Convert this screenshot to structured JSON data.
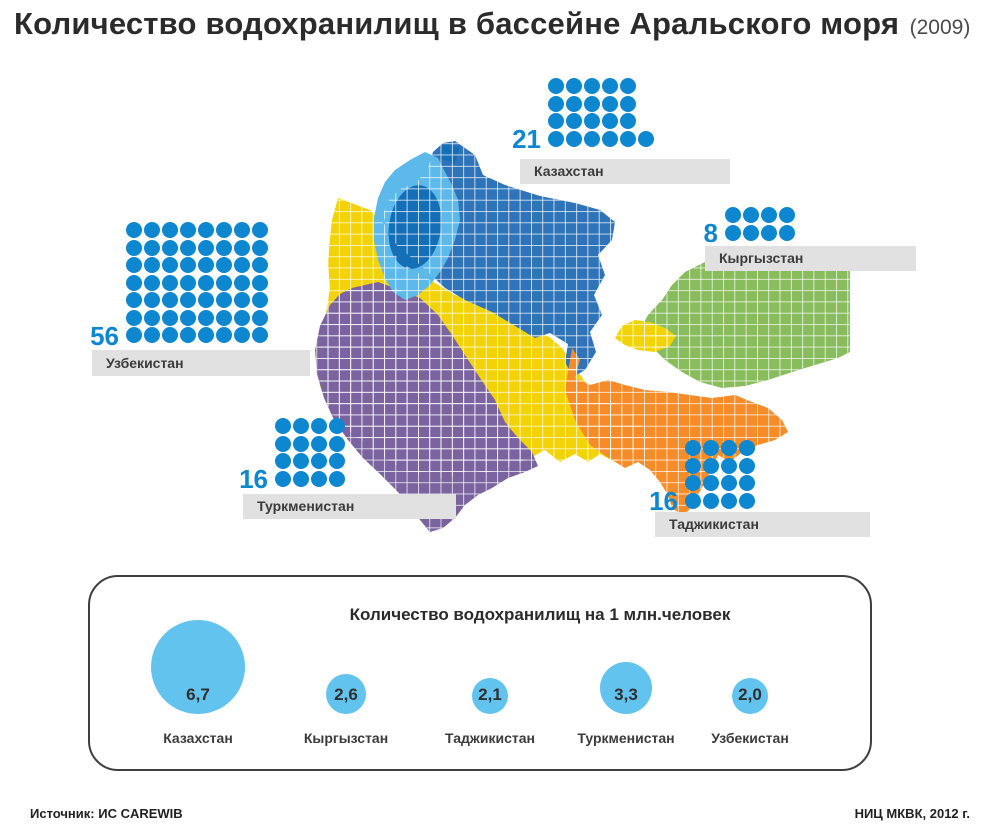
{
  "title": {
    "main": "Количество водохранилищ в бассейне Аральского моря",
    "year": "(2009)"
  },
  "map": {
    "colors": {
      "kazakhstan": "#2f74b9",
      "uzbekistan": "#f2d307",
      "turkmenistan": "#7b63a0",
      "kyrgyzstan": "#88bc5d",
      "tajikistan": "#f68c28",
      "fergana_enclave": "#f2d307",
      "aral_sea_light": "#5cb9e9",
      "aral_sea_dark": "#156fb7"
    }
  },
  "map_blocks": [
    {
      "id": "kazakhstan",
      "value": "21",
      "label": "Казахстан",
      "dot_rows": [
        5,
        5,
        5,
        6
      ]
    },
    {
      "id": "kyrgyzstan",
      "value": "8",
      "label": "Кыргызстан",
      "dot_rows": [
        4,
        4
      ]
    },
    {
      "id": "uzbekistan",
      "value": "56",
      "label": "Узбекистан",
      "dot_rows": [
        8,
        8,
        8,
        8,
        8,
        8,
        8
      ]
    },
    {
      "id": "turkmenistan",
      "value": "16",
      "label": "Туркменистан",
      "dot_rows": [
        4,
        4,
        4,
        4
      ]
    },
    {
      "id": "tajikistan",
      "value": "16",
      "label": "Таджикистан",
      "dot_rows": [
        4,
        4,
        4,
        4
      ]
    }
  ],
  "legend": {
    "title": "Количество водохранилищ на 1 млн.человек",
    "items": [
      {
        "label": "Казахстан",
        "value": "6,7"
      },
      {
        "label": "Кыргызстан",
        "value": "2,6"
      },
      {
        "label": "Таджикистан",
        "value": "2,1"
      },
      {
        "label": "Туркменистан",
        "value": "3,3"
      },
      {
        "label": "Узбекистан",
        "value": "2,0"
      }
    ]
  },
  "footer": {
    "source": "Источник: ИС CAREWIB",
    "credit": "НИЦ МКВК, 2012 г."
  },
  "chart_data": [
    {
      "type": "pictogram",
      "title": "Количество водохранилищ в бассейне Аральского моря (2009)",
      "categories": [
        "Казахстан",
        "Кыргызстан",
        "Узбекистан",
        "Туркменистан",
        "Таджикистан"
      ],
      "values": [
        21,
        8,
        56,
        16,
        16
      ],
      "unit": "водохранилищ (1 точка = 1 водохранилище)",
      "legend_position": "beside each country region on map"
    },
    {
      "type": "bubble",
      "title": "Количество водохранилищ на 1 млн.человек",
      "categories": [
        "Казахстан",
        "Кыргызстан",
        "Таджикистан",
        "Туркменистан",
        "Узбекистан"
      ],
      "values": [
        6.7,
        2.6,
        2.1,
        3.3,
        2.0
      ],
      "legend_position": "bottom panel, bubble area ~ value"
    }
  ]
}
